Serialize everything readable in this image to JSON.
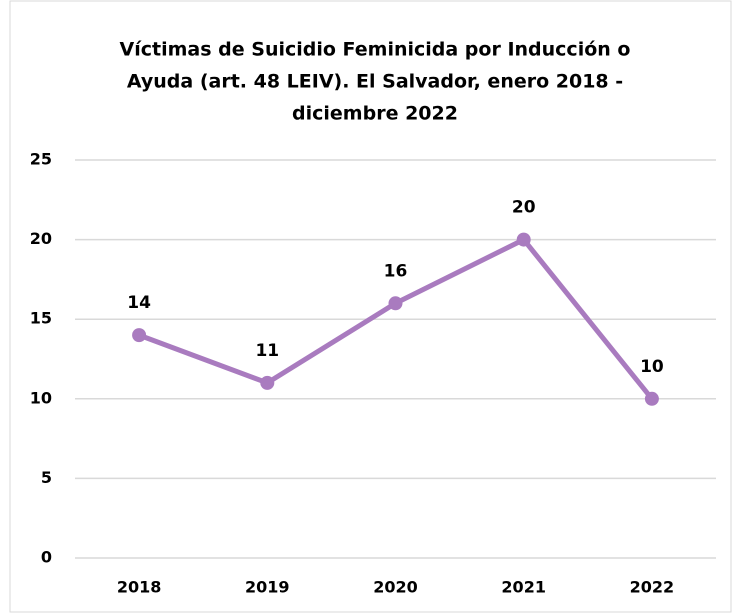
{
  "chart_data": {
    "type": "line",
    "title": [
      "Víctimas de Suicidio Feminicida por Inducción o",
      "Ayuda (art. 48 LEIV). El Salvador, enero 2018 -",
      "diciembre 2022"
    ],
    "categories": [
      "2018",
      "2019",
      "2020",
      "2021",
      "2022"
    ],
    "series": [
      {
        "name": "Víctimas",
        "color": "#a97bbf",
        "values": [
          14,
          11,
          16,
          20,
          10
        ]
      }
    ],
    "ylim": [
      0,
      25
    ],
    "yticks": [
      0,
      5,
      10,
      15,
      20,
      25
    ],
    "grid": true
  }
}
